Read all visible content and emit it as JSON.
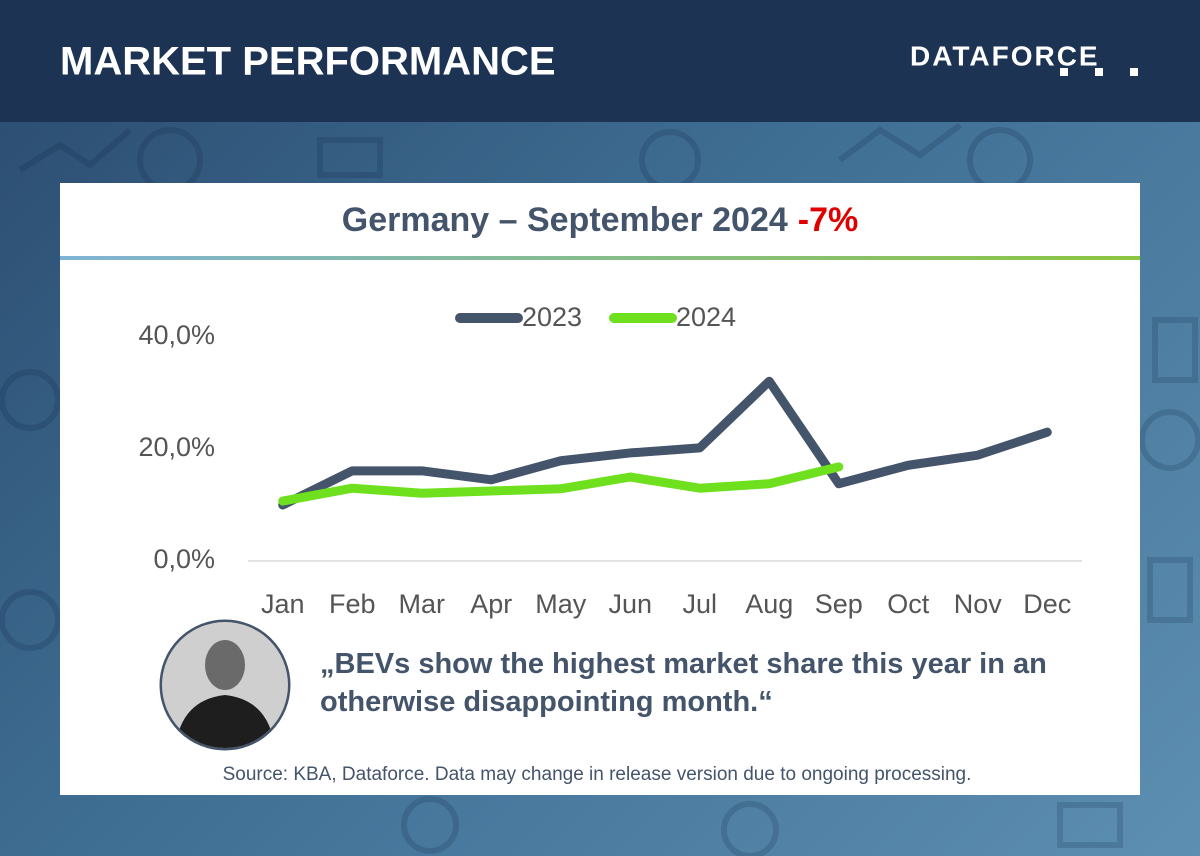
{
  "header": {
    "title": "MARKET PERFORMANCE",
    "logo": "DATAFORCE"
  },
  "chart_data": {
    "type": "line",
    "title": "Germany – September 2024",
    "title_highlight": "-7%",
    "categories": [
      "Jan",
      "Feb",
      "Mar",
      "Apr",
      "May",
      "Jun",
      "Jul",
      "Aug",
      "Sep",
      "Oct",
      "Nov",
      "Dec"
    ],
    "series": [
      {
        "name": "2023",
        "color": "#44546a",
        "values": [
          10.0,
          16.1,
          16.1,
          14.5,
          17.9,
          19.3,
          20.2,
          32.1,
          13.8,
          17.1,
          18.9,
          23.0
        ]
      },
      {
        "name": "2024",
        "color": "#6ee01e",
        "values": [
          10.7,
          13.0,
          12.1,
          12.5,
          12.9,
          15.0,
          13.0,
          13.8,
          16.8,
          null,
          null,
          null
        ]
      }
    ],
    "ylim": [
      0,
      40
    ],
    "yticks": [
      {
        "value": 0,
        "label": "0,0%"
      },
      {
        "value": 20,
        "label": "20,0%"
      },
      {
        "value": 40,
        "label": "40,0%"
      }
    ],
    "legend": "top"
  },
  "quote": "„BEVs show the highest market share this year in an otherwise disappointing month.“",
  "source": "Source: KBA, Dataforce. Data may change in release version due to ongoing processing."
}
